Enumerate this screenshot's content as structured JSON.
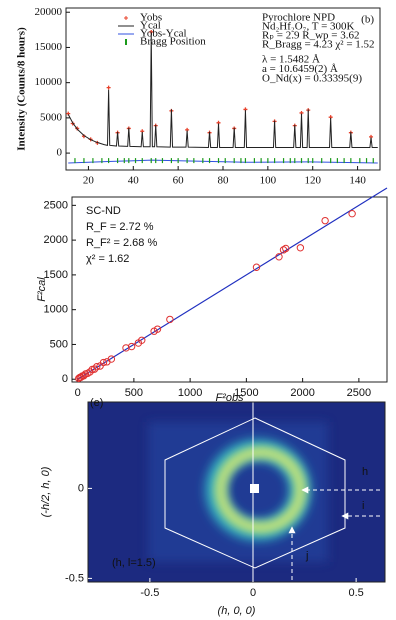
{
  "chart_data": [
    {
      "type": "line",
      "label": "(b)",
      "ylabel": "Intensity (Counts/8 hours)",
      "xlim": [
        10,
        150
      ],
      "xticks": [
        20,
        40,
        60,
        80,
        100,
        120,
        140
      ],
      "ylim": [
        -2400,
        20600
      ],
      "yticks": [
        0,
        5000,
        10000,
        15000,
        20000
      ],
      "annotations": [
        "Pyrochlore  NPD",
        "Nd₂Hf₂O₇, T = 300K",
        "Rₚ = 2.9      R_wp = 3.62",
        "R_Bragg = 4.23   χ² = 1.52",
        "λ = 1.5482 Å",
        "a = 10.6459(2) Å",
        "O_Nd(x) = 0.33395(9)"
      ],
      "series": [
        {
          "name": "Yobs",
          "color": "#e8402a",
          "style": "markers",
          "x": [
            11,
            13,
            15,
            18,
            21,
            24,
            29,
            33,
            38,
            44,
            48,
            50,
            57,
            64,
            74,
            78,
            85,
            90,
            103,
            112,
            115,
            118,
            128,
            137,
            146
          ],
          "values": [
            5600,
            4200,
            3500,
            2400,
            1950,
            1450,
            9300,
            2900,
            3500,
            3100,
            17200,
            3900,
            6000,
            3300,
            2900,
            4300,
            3500,
            6200,
            4500,
            3900,
            5700,
            6100,
            5100,
            2900,
            2300
          ]
        },
        {
          "name": "Ycal",
          "color": "#222222",
          "style": "line",
          "x": [
            11,
            13,
            15,
            18,
            21,
            24,
            27,
            28.5,
            29,
            29.5,
            32.5,
            33,
            33.5,
            37.5,
            38,
            38.5,
            43.5,
            44,
            44.5,
            47.5,
            48,
            48.5,
            49.5,
            50,
            50.5,
            56.5,
            57,
            57.5,
            63.5,
            64,
            64.5,
            73.5,
            74,
            74.5,
            77.5,
            78,
            78.5,
            84.5,
            85,
            85.5,
            89.5,
            90,
            90.5,
            102.5,
            103,
            103.5,
            111.5,
            112,
            112.5,
            114.5,
            115,
            115.5,
            117.5,
            118,
            118.5,
            127.5,
            128,
            128.5,
            136.5,
            137,
            137.5,
            145.5,
            146,
            146.5,
            149
          ],
          "values": [
            5500,
            4300,
            3400,
            2500,
            1900,
            1500,
            1200,
            1100,
            9000,
            1100,
            1000,
            3000,
            1000,
            950,
            3600,
            950,
            900,
            3000,
            900,
            900,
            17000,
            900,
            900,
            4000,
            900,
            850,
            6200,
            850,
            850,
            3200,
            850,
            800,
            3000,
            800,
            800,
            4200,
            800,
            800,
            3600,
            800,
            800,
            6100,
            800,
            800,
            4600,
            800,
            800,
            4000,
            800,
            800,
            5600,
            800,
            800,
            6200,
            800,
            800,
            5000,
            800,
            800,
            3000,
            800,
            800,
            2200,
            800,
            800
          ]
        },
        {
          "name": "Yobs-Ycal",
          "color": "#3050e0",
          "style": "line",
          "x": [
            11,
            29,
            48,
            90,
            118,
            149
          ],
          "values": [
            -1400,
            -1200,
            -1000,
            -1300,
            -1250,
            -1400
          ]
        },
        {
          "name": "Bragg Position",
          "color": "#1a9a1a",
          "style": "ticks",
          "x": [
            14,
            18,
            22,
            26,
            29,
            33,
            36,
            38,
            41,
            44,
            48,
            50,
            53,
            57,
            60,
            64,
            67,
            71,
            74,
            78,
            81,
            85,
            88,
            90,
            94,
            97,
            100,
            103,
            107,
            110,
            112,
            115,
            118,
            120,
            124,
            128,
            131,
            134,
            137,
            141,
            144,
            147
          ]
        }
      ]
    },
    {
      "type": "scatter",
      "xlabel": "F²obs",
      "ylabel": "F²cal",
      "xlim": [
        -50,
        2750
      ],
      "xticks": [
        0,
        500,
        1000,
        1500,
        2000,
        2500
      ],
      "ylim": [
        -40,
        2620
      ],
      "yticks": [
        0,
        500,
        1000,
        1500,
        2000,
        2500
      ],
      "annotations": [
        "SC-ND",
        "R_F = 2.72 %",
        "R_F² = 2.68 %",
        "χ² = 1.62"
      ],
      "color": "#e03030",
      "line": {
        "color": "#2030c0",
        "x": [
          0,
          2750
        ],
        "values": [
          0,
          2750
        ]
      },
      "x": [
        10,
        20,
        30,
        40,
        55,
        70,
        90,
        110,
        130,
        150,
        170,
        200,
        230,
        260,
        300,
        430,
        480,
        540,
        570,
        680,
        710,
        820,
        1590,
        1790,
        1830,
        1850,
        1980,
        2200,
        2440
      ],
      "values": [
        12,
        25,
        28,
        45,
        50,
        75,
        85,
        105,
        140,
        145,
        180,
        190,
        240,
        250,
        290,
        450,
        470,
        520,
        560,
        690,
        720,
        860,
        1610,
        1760,
        1860,
        1880,
        1890,
        2280,
        2380
      ]
    },
    {
      "type": "image",
      "xlabel": "(h, 0, 0)",
      "ylabel": "(-h/2, h, 0)",
      "xlim": [
        -0.8,
        0.64
      ],
      "xticks": [
        -0.5,
        0,
        0.5
      ],
      "ylim": [
        -0.52,
        0.48
      ],
      "yticks": [
        -0.5,
        0
      ],
      "annotations": [
        "(e)",
        "h",
        "i",
        "j",
        "(h, l=1.5)"
      ]
    }
  ]
}
